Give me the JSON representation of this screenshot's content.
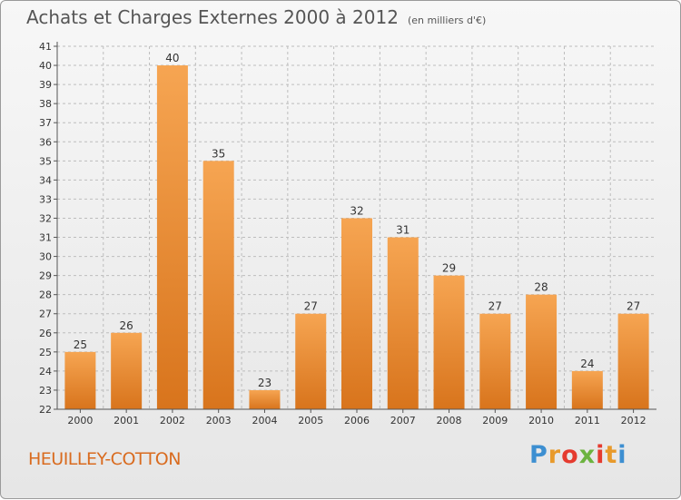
{
  "header": {
    "title": "Achats et Charges Externes 2000 à 2012",
    "unit": "(en milliers d'€)"
  },
  "place_name": "HEUILLEY-COTTON",
  "logo": {
    "letters": [
      "P",
      "r",
      "o",
      "x",
      "i",
      "t",
      "i"
    ],
    "colors": [
      "#3d8fd1",
      "#e89a2b",
      "#e53b2f",
      "#6cb33f",
      "#e53b2f",
      "#e89a2b",
      "#3d8fd1"
    ]
  },
  "colors": {
    "bar_light": "#f6a552",
    "bar_dark": "#d8741c",
    "place": "#d96b1f"
  },
  "chart_data": {
    "type": "bar",
    "categories": [
      "2000",
      "2001",
      "2002",
      "2003",
      "2004",
      "2005",
      "2006",
      "2007",
      "2008",
      "2009",
      "2010",
      "2011",
      "2012"
    ],
    "values": [
      25,
      26,
      40,
      35,
      23,
      27,
      32,
      31,
      29,
      27,
      28,
      24,
      27
    ],
    "ylim": [
      22,
      41
    ],
    "yticks": [
      22,
      23,
      24,
      25,
      26,
      27,
      28,
      29,
      30,
      31,
      32,
      33,
      34,
      35,
      36,
      37,
      38,
      39,
      40,
      41
    ],
    "grid": true,
    "title": "Achats et Charges Externes 2000 à 2012",
    "xlabel": "",
    "ylabel": ""
  }
}
